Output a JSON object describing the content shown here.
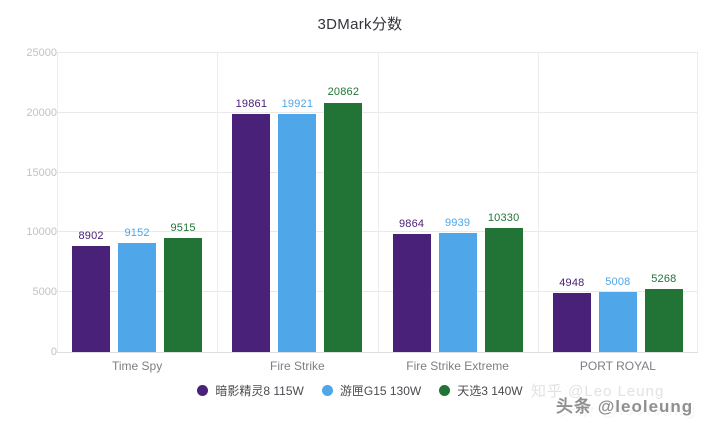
{
  "chart_data": {
    "type": "bar",
    "title": "3DMark分数",
    "categories": [
      "Time Spy",
      "Fire Strike",
      "Fire Strike Extreme",
      "PORT ROYAL"
    ],
    "series": [
      {
        "name": "暗影精灵8 115W",
        "color": "#4A2178",
        "values": [
          8902,
          19861,
          9864,
          4948
        ]
      },
      {
        "name": "游匣G15 130W",
        "color": "#4FA6E8",
        "values": [
          9152,
          19921,
          9939,
          5008
        ]
      },
      {
        "name": "天选3 140W",
        "color": "#217436",
        "values": [
          9515,
          20862,
          10330,
          5268
        ]
      }
    ],
    "ylim": [
      0,
      25000
    ],
    "yticks": [
      "0",
      "5000",
      "10000",
      "15000",
      "20000",
      "25000"
    ],
    "grid": true,
    "legend_position": "bottom",
    "xlabel": "",
    "ylabel": ""
  },
  "watermarks": {
    "zhihu": "知乎 @Leo Leung",
    "toutiao": "头条 @leoleung"
  },
  "colors": {
    "grid": "#e9e9ec",
    "tick_label": "#c2c2c6",
    "category_label": "#7e7e82",
    "title": "#34343a"
  }
}
